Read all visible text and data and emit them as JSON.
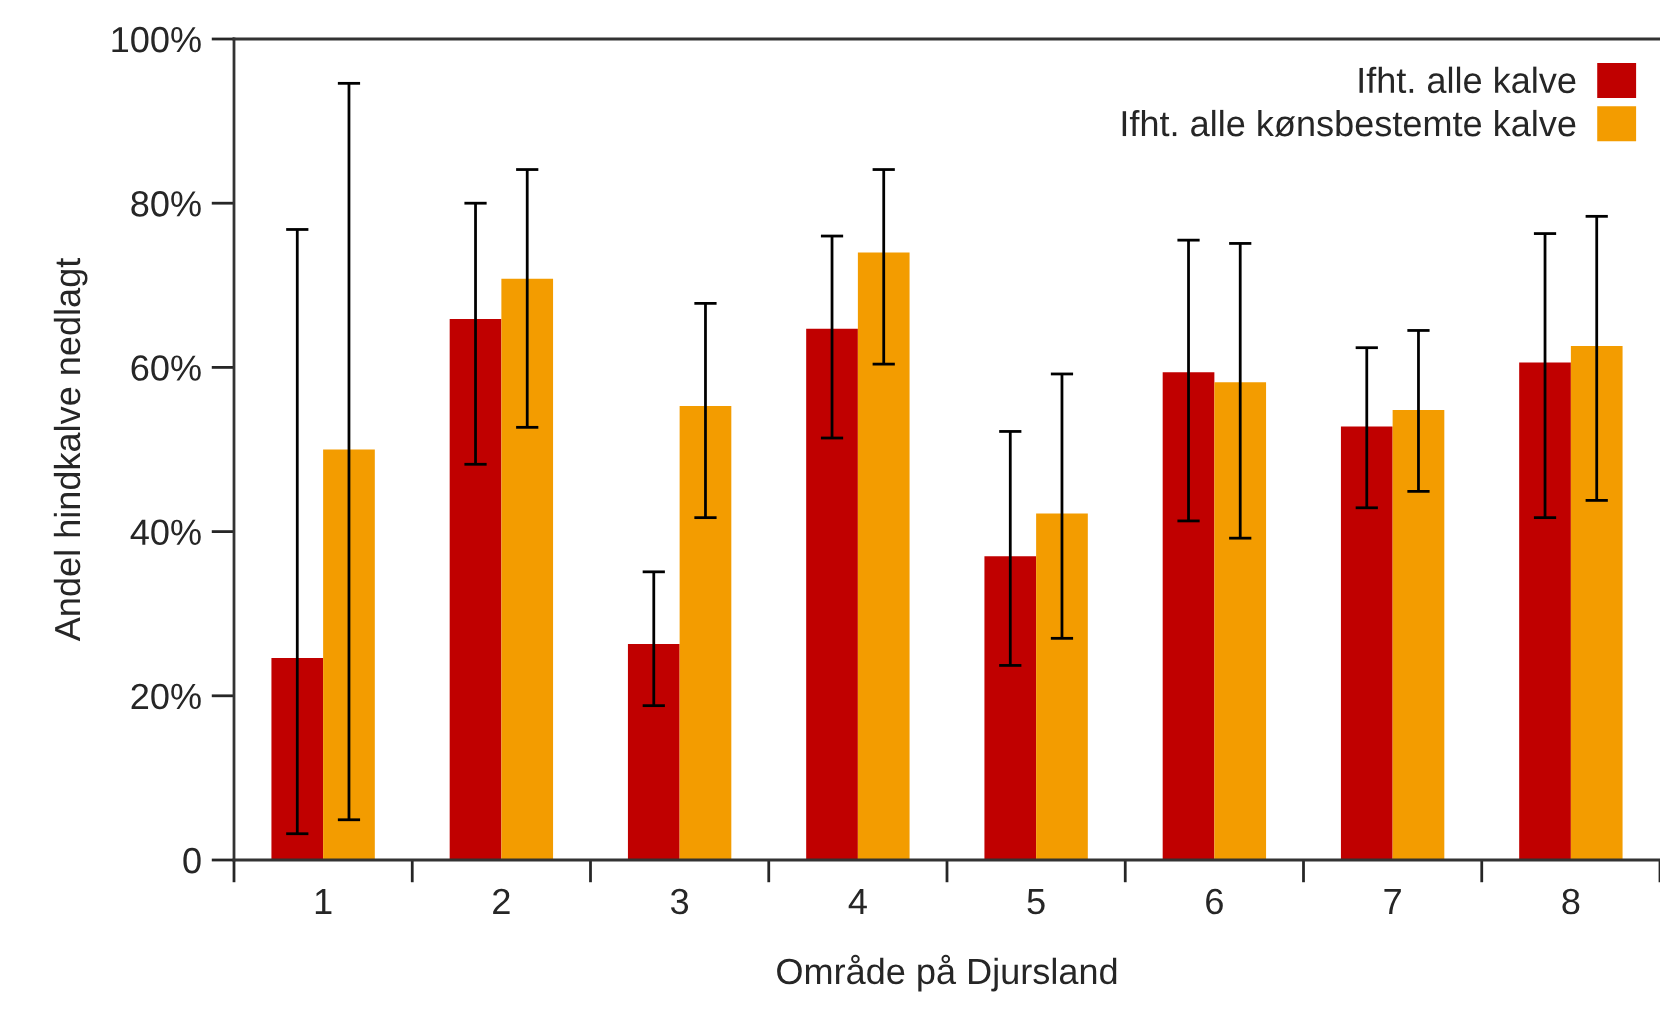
{
  "chart_data": {
    "type": "bar",
    "xlabel": "Område på Djursland",
    "ylabel": "Andel hindkalve nedlagt",
    "categories": [
      "1",
      "2",
      "3",
      "4",
      "5",
      "6",
      "7",
      "8"
    ],
    "series": [
      {
        "name": "Ifht. alle kalve",
        "color": "#c00000",
        "values": [
          24.6,
          65.9,
          26.3,
          64.7,
          37.0,
          59.4,
          52.8,
          60.6
        ],
        "errors": [
          [
            3.2,
            76.8
          ],
          [
            48.2,
            80.0
          ],
          [
            18.8,
            35.1
          ],
          [
            51.4,
            76.0
          ],
          [
            23.7,
            52.2
          ],
          [
            41.3,
            75.5
          ],
          [
            42.9,
            62.4
          ],
          [
            41.7,
            76.3
          ]
        ]
      },
      {
        "name": "Ifht. alle kønsbestemte kalve",
        "color": "#f39c00",
        "values": [
          50.0,
          70.8,
          55.3,
          74.0,
          42.2,
          58.2,
          54.8,
          62.6
        ],
        "errors": [
          [
            4.9,
            94.6
          ],
          [
            52.7,
            84.1
          ],
          [
            41.7,
            67.8
          ],
          [
            60.4,
            84.1
          ],
          [
            27.0,
            59.2
          ],
          [
            39.2,
            75.1
          ],
          [
            44.9,
            64.5
          ],
          [
            43.8,
            78.4
          ]
        ]
      }
    ],
    "ylim": [
      0,
      100
    ],
    "yticks": [
      0,
      {
        "value": 20,
        "label": "20%"
      },
      {
        "value": 40,
        "label": "40%"
      },
      {
        "value": 60,
        "label": "60%"
      },
      {
        "value": 80,
        "label": "80%"
      },
      {
        "value": 100,
        "label": "100%"
      }
    ],
    "grid": false,
    "legend": "top right"
  }
}
